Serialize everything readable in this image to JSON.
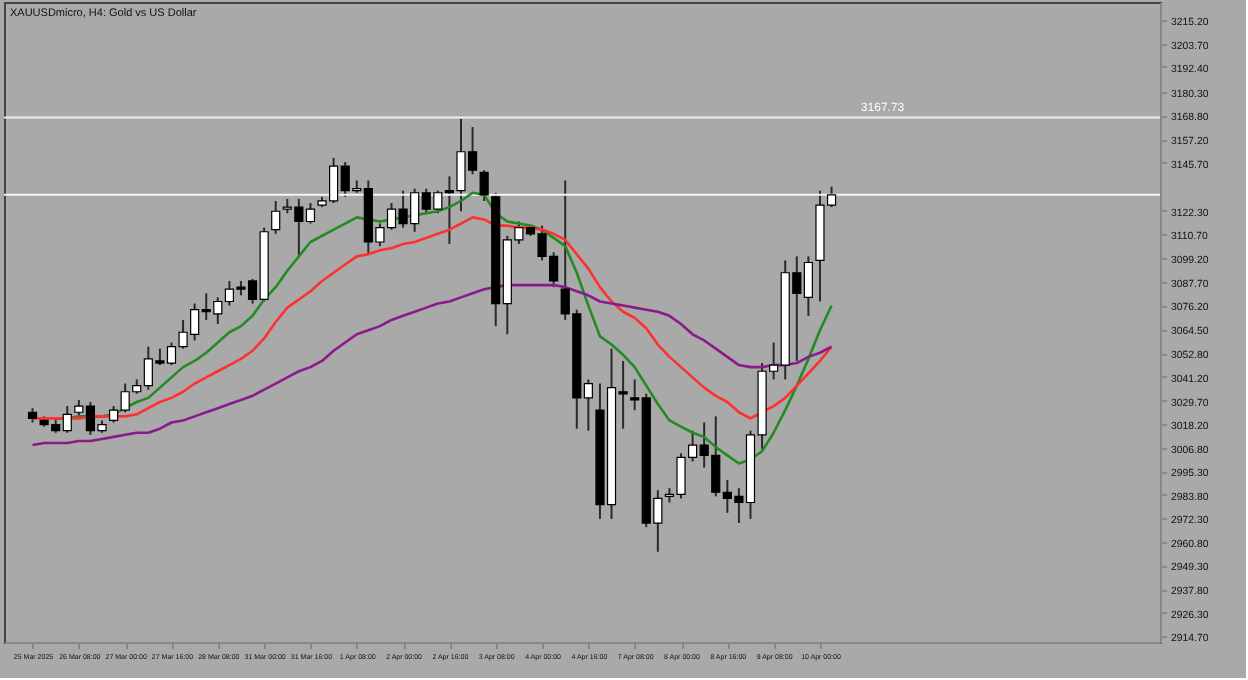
{
  "chart_data": {
    "type": "candlestick",
    "title": "XAUUSDmicro, H4: Gold vs US Dollar",
    "categories": [
      "25 Mar 2025",
      null,
      null,
      null,
      "26 Mar 08:00",
      null,
      null,
      null,
      "27 Mar 00:00",
      null,
      null,
      null,
      "27 Mar 16:00",
      null,
      null,
      null,
      "28 Mar 08:00",
      null,
      null,
      null,
      "31 Mar 00:00",
      null,
      null,
      null,
      "31 Mar 16:00",
      null,
      null,
      null,
      "1 Apr 08:00",
      null,
      null,
      null,
      "2 Apr 00:00",
      null,
      null,
      null,
      "2 Apr 16:00",
      null,
      null,
      null,
      "3 Apr 08:00",
      null,
      null,
      null,
      "4 Apr 00:00",
      null,
      null,
      null,
      "4 Apr 16:00",
      null,
      null,
      null,
      "7 Apr 08:00",
      null,
      null,
      null,
      "8 Apr 00:00",
      null,
      null,
      null,
      "8 Apr 16:00",
      null,
      null,
      null,
      "9 Apr 08:00",
      null,
      null,
      null,
      "10 Apr 00:00",
      null,
      null,
      null,
      null,
      null,
      null,
      null,
      null,
      null,
      null,
      null,
      null,
      null,
      null,
      null,
      null,
      null,
      null,
      null,
      null,
      null,
      null,
      null,
      null,
      null,
      null,
      null,
      null
    ],
    "ohlc": [
      [
        3024,
        3026,
        3019,
        3021
      ],
      [
        3020,
        3022,
        3017,
        3018
      ],
      [
        3018,
        3021,
        3014,
        3015
      ],
      [
        3015,
        3027,
        3014,
        3023
      ],
      [
        3024,
        3030,
        3022,
        3027
      ],
      [
        3027,
        3029,
        3013,
        3015
      ],
      [
        3015,
        3020,
        3014,
        3018
      ],
      [
        3020,
        3027,
        3019,
        3025
      ],
      [
        3025,
        3038,
        3024,
        3034
      ],
      [
        3034,
        3040,
        3033,
        3037
      ],
      [
        3037,
        3056,
        3035,
        3050
      ],
      [
        3049,
        3055,
        3047,
        3048
      ],
      [
        3048,
        3058,
        3047,
        3056
      ],
      [
        3056,
        3069,
        3055,
        3063
      ],
      [
        3062,
        3077,
        3059,
        3074
      ],
      [
        3074,
        3082,
        3069,
        3073
      ],
      [
        3072,
        3080,
        3067,
        3078
      ],
      [
        3078,
        3088,
        3076,
        3084
      ],
      [
        3085,
        3088,
        3081,
        3084
      ],
      [
        3088,
        3089,
        3077,
        3079
      ],
      [
        3079,
        3114,
        3078,
        3112
      ],
      [
        3113,
        3127,
        3111,
        3122
      ],
      [
        3123,
        3128,
        3121,
        3124
      ],
      [
        3124,
        3128,
        3100,
        3117
      ],
      [
        3117,
        3126,
        3116,
        3123
      ],
      [
        3125,
        3129,
        3124,
        3127
      ],
      [
        3127,
        3148,
        3126,
        3144
      ],
      [
        3144,
        3146,
        3129,
        3132
      ],
      [
        3132,
        3137,
        3131,
        3133
      ],
      [
        3133,
        3137,
        3101,
        3107
      ],
      [
        3107,
        3116,
        3105,
        3114
      ],
      [
        3114,
        3126,
        3113,
        3123
      ],
      [
        3123,
        3132,
        3114,
        3116
      ],
      [
        3116,
        3133,
        3112,
        3131
      ],
      [
        3131,
        3133,
        3121,
        3123
      ],
      [
        3123,
        3132,
        3121,
        3131
      ],
      [
        3132,
        3139,
        3106,
        3131
      ],
      [
        3132,
        3167,
        3122,
        3151
      ],
      [
        3151,
        3163,
        3140,
        3142
      ],
      [
        3141,
        3142,
        3127,
        3130
      ],
      [
        3129,
        3131,
        3066,
        3077
      ],
      [
        3077,
        3110,
        3062,
        3108
      ],
      [
        3108,
        3117,
        3106,
        3114
      ],
      [
        3114,
        3115,
        3110,
        3111
      ],
      [
        3111,
        3115,
        3098,
        3100
      ],
      [
        3100,
        3102,
        3085,
        3088
      ],
      [
        3084,
        3137,
        3069,
        3072
      ],
      [
        3072,
        3074,
        3016,
        3031
      ],
      [
        3031,
        3040,
        3015,
        3038
      ],
      [
        3025,
        3038,
        2972,
        2979
      ],
      [
        2979,
        3055,
        2972,
        3036
      ],
      [
        3034,
        3049,
        3016,
        3033
      ],
      [
        3031,
        3040,
        3025,
        3030
      ],
      [
        3031,
        3033,
        2968,
        2970
      ],
      [
        2970,
        2986,
        2956,
        2982
      ],
      [
        2983,
        2987,
        2980,
        2984
      ],
      [
        2984,
        3004,
        2982,
        3002
      ],
      [
        3002,
        3015,
        3000,
        3008
      ],
      [
        3008,
        3019,
        2997,
        3003
      ],
      [
        3003,
        3022,
        2983,
        2985
      ],
      [
        2985,
        2991,
        2975,
        2982
      ],
      [
        2983,
        2987,
        2970,
        2980
      ],
      [
        2980,
        3015,
        2972,
        3013
      ],
      [
        3013,
        3048,
        3006,
        3044
      ],
      [
        3044,
        3058,
        3040,
        3047
      ],
      [
        3047,
        3098,
        3040,
        3092
      ],
      [
        3092,
        3100,
        3049,
        3082
      ],
      [
        3080,
        3100,
        3071,
        3097
      ],
      [
        3098,
        3132,
        3078,
        3125
      ],
      [
        3125,
        3134,
        3124,
        3130
      ],
      null,
      null,
      null,
      null,
      null,
      null,
      null,
      null,
      null,
      null,
      null,
      null,
      null,
      null,
      null,
      null,
      null,
      null,
      null,
      null,
      null,
      null,
      null,
      null,
      null,
      null,
      null
    ],
    "series": [
      {
        "type": "line",
        "color": "#228b22",
        "values": [
          null,
          null,
          3021,
          3021,
          3022,
          3022,
          3022,
          3023,
          3026,
          3029,
          3031,
          3036,
          3041,
          3046,
          3049,
          3053,
          3058,
          3063,
          3066,
          3071,
          3079,
          3085,
          3093,
          3100,
          3107,
          3110,
          3113,
          3116,
          3119,
          3118,
          3117,
          3118,
          3119,
          3120,
          3121,
          3122,
          3124,
          3127,
          3131,
          3130,
          3121,
          3117,
          3116,
          3115,
          3113,
          3109,
          3105,
          3092,
          3076,
          3061,
          3057,
          3052,
          3046,
          3037,
          3028,
          3020,
          3017,
          3014,
          3012,
          3007,
          3003,
          2999,
          3001,
          3005,
          3014,
          3025,
          3037,
          3050,
          3064,
          3076,
          null,
          null,
          null,
          null,
          null,
          null,
          null,
          null,
          null,
          null,
          null,
          null,
          null,
          null,
          null,
          null,
          null,
          null,
          null,
          null,
          null,
          null,
          null,
          null,
          null,
          null,
          null
        ]
      },
      {
        "type": "line",
        "color": "#ff3030",
        "values": [
          3021,
          3021,
          3021,
          3021,
          3021,
          3022,
          3022,
          3022,
          3022,
          3023,
          3026,
          3029,
          3031,
          3034,
          3038,
          3041,
          3044,
          3047,
          3050,
          3054,
          3060,
          3068,
          3075,
          3079,
          3083,
          3088,
          3092,
          3096,
          3100,
          3101,
          3103,
          3104,
          3106,
          3107,
          3109,
          3111,
          3113,
          3116,
          3119,
          3118,
          3115,
          3115,
          3114,
          3114,
          3113,
          3111,
          3108,
          3101,
          3094,
          3085,
          3078,
          3073,
          3070,
          3065,
          3057,
          3051,
          3046,
          3041,
          3036,
          3032,
          3029,
          3024,
          3021,
          3024,
          3027,
          3031,
          3037,
          3043,
          3049,
          3056,
          null,
          null,
          null,
          null,
          null,
          null,
          null,
          null,
          null,
          null,
          null,
          null,
          null,
          null,
          null,
          null,
          null,
          null,
          null,
          null,
          null,
          null,
          null,
          null,
          null,
          null,
          null
        ]
      },
      {
        "type": "line",
        "color": "#8b1a8b",
        "values": [
          3008,
          3009,
          3009,
          3009,
          3010,
          3010,
          3011,
          3012,
          3013,
          3014,
          3014,
          3016,
          3019,
          3020,
          3022,
          3024,
          3026,
          3028,
          3030,
          3032,
          3035,
          3038,
          3041,
          3044,
          3046,
          3049,
          3054,
          3058,
          3062,
          3064,
          3066,
          3069,
          3071,
          3073,
          3075,
          3077,
          3078,
          3080,
          3082,
          3084,
          3085,
          3086,
          3086,
          3086,
          3086,
          3086,
          3085,
          3083,
          3081,
          3078,
          3077,
          3076,
          3075,
          3074,
          3073,
          3071,
          3067,
          3062,
          3059,
          3055,
          3051,
          3047,
          3046,
          3046,
          3047,
          3047,
          3048,
          3051,
          3053,
          3056,
          null,
          null,
          null,
          null,
          null,
          null,
          null,
          null,
          null,
          null,
          null,
          null,
          null,
          null,
          null,
          null,
          null,
          null,
          null,
          null,
          null,
          null,
          null,
          null,
          null,
          null,
          null
        ]
      }
    ],
    "ylim": [
      2912,
      3224
    ],
    "yticks": [
      {
        "value": 3215.2,
        "label": "3215.20"
      },
      {
        "value": 3203.7,
        "label": "3203.70"
      },
      {
        "value": 3192.4,
        "label": "3192.40"
      },
      {
        "value": 3180.3,
        "label": "3180.30"
      },
      {
        "value": 3168.8,
        "label": "3168.80"
      },
      {
        "value": 3157.2,
        "label": "3157.20"
      },
      {
        "value": 3145.7,
        "label": "3145.70"
      },
      {
        "value": 3122.3,
        "label": "3122.30"
      },
      {
        "value": 3110.7,
        "label": "3110.70"
      },
      {
        "value": 3099.2,
        "label": "3099.20"
      },
      {
        "value": 3087.7,
        "label": "3087.70"
      },
      {
        "value": 3076.2,
        "label": "3076.20"
      },
      {
        "value": 3064.5,
        "label": "3064.50"
      },
      {
        "value": 3052.8,
        "label": "3052.80"
      },
      {
        "value": 3041.2,
        "label": "3041.20"
      },
      {
        "value": 3029.7,
        "label": "3029.70"
      },
      {
        "value": 3018.2,
        "label": "3018.20"
      },
      {
        "value": 3006.8,
        "label": "3006.80"
      },
      {
        "value": 2995.3,
        "label": "2995.30"
      },
      {
        "value": 2983.8,
        "label": "2983.80"
      },
      {
        "value": 2972.3,
        "label": "2972.30"
      },
      {
        "value": 2960.8,
        "label": "2960.80"
      },
      {
        "value": 2949.3,
        "label": "2949.30"
      },
      {
        "value": 2937.8,
        "label": "2937.80"
      },
      {
        "value": 2926.3,
        "label": "2926.30"
      },
      {
        "value": 2914.7,
        "label": "2914.70"
      }
    ],
    "ref_lines": [
      {
        "axis": "y",
        "value": 3167.73,
        "label": "3167.73",
        "color": "#eeeeee",
        "line_style": "solid"
      },
      {
        "axis": "y",
        "value": 3130,
        "color": "#f4f4f4",
        "line_style": "solid"
      }
    ],
    "grid": false
  }
}
